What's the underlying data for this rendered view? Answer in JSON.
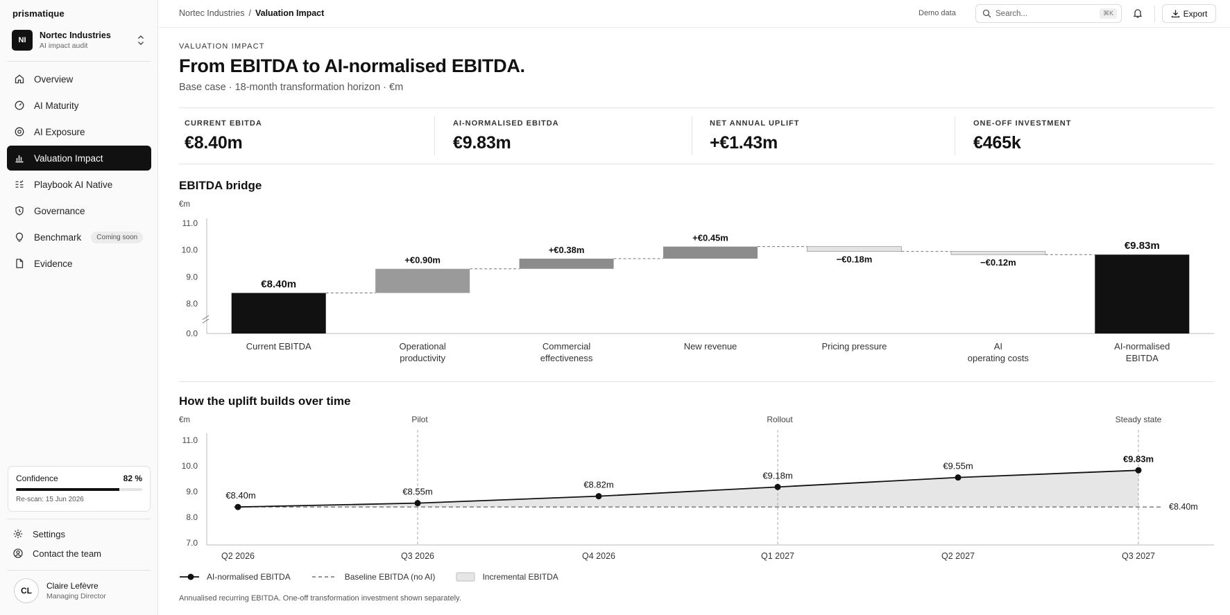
{
  "app": {
    "brand": "prismatique",
    "org": {
      "initials": "NI",
      "name": "Nortec Industries",
      "subtitle": "AI impact audit"
    }
  },
  "sidebar": {
    "items": [
      {
        "label": "Overview",
        "icon": "home-icon"
      },
      {
        "label": "AI Maturity",
        "icon": "gauge-icon"
      },
      {
        "label": "AI Exposure",
        "icon": "target-icon"
      },
      {
        "label": "Valuation Impact",
        "icon": "bar-chart-icon",
        "active": true
      },
      {
        "label": "Playbook AI Native",
        "icon": "list-check-icon"
      },
      {
        "label": "Governance",
        "icon": "shield-icon"
      },
      {
        "label": "Benchmark",
        "icon": "lightbulb-icon",
        "badge": "Coming soon"
      },
      {
        "label": "Evidence",
        "icon": "file-icon"
      }
    ],
    "confidence": {
      "label": "Confidence",
      "value": "82 %",
      "fraction": 0.82,
      "rescan": "Re-scan: 15 Jun 2026"
    },
    "settings_label": "Settings",
    "contact_label": "Contact the team",
    "user": {
      "initials": "CL",
      "name": "Claire Lefèvre",
      "role": "Managing Director"
    }
  },
  "topbar": {
    "breadcrumb_parent": "Nortec Industries",
    "breadcrumb_sep": "/",
    "breadcrumb_current": "Valuation Impact",
    "demo_label": "Demo data",
    "search_placeholder": "Search...",
    "search_shortcut": "⌘K",
    "export_label": "Export"
  },
  "page": {
    "eyebrow": "VALUATION IMPACT",
    "title": "From EBITDA to AI-normalised EBITDA.",
    "subtitle": "Base case · 18-month transformation horizon · €m"
  },
  "kpis": [
    {
      "label": "CURRENT EBITDA",
      "value": "€8.40m"
    },
    {
      "label": "AI-NORMALISED EBITDA",
      "value": "€9.83m"
    },
    {
      "label": "NET ANNUAL UPLIFT",
      "value": "+€1.43m"
    },
    {
      "label": "ONE-OFF INVESTMENT",
      "value": "€465k"
    }
  ],
  "bridge": {
    "title": "EBITDA bridge",
    "unit": "€m"
  },
  "timeline": {
    "title": "How the uplift builds over time",
    "unit": "€m",
    "legend": [
      "AI-normalised EBITDA",
      "Baseline EBITDA (no AI)",
      "Incremental EBITDA"
    ],
    "footnote": "Annualised recurring EBITDA. One-off transformation investment shown separately."
  },
  "colors": {
    "ink": "#111111",
    "bar_up": "#9a9a9a",
    "bar_up_light": "#8c8c8c",
    "bar_down": "#e4e4e4",
    "area": "#e6e6e6",
    "grid": "#d6d6d6"
  },
  "chart_data": [
    {
      "type": "bar",
      "subtype": "waterfall",
      "title": "EBITDA bridge",
      "ylabel": "€m",
      "ylim": [
        0,
        11
      ],
      "axis_break": true,
      "yticks": [
        0.0,
        8.0,
        9.0,
        10.0,
        11.0
      ],
      "ytick_labels": [
        "0.0",
        "8.0",
        "9.0",
        "10.0",
        "11.0"
      ],
      "categories": [
        "Current EBITDA",
        "Operational productivity",
        "Commercial effectiveness",
        "New revenue",
        "Pricing pressure",
        "AI operating costs",
        "AI-normalised EBITDA"
      ],
      "values": [
        8.4,
        0.9,
        0.38,
        0.45,
        -0.18,
        -0.12,
        9.83
      ],
      "kinds": [
        "total",
        "delta",
        "delta",
        "delta",
        "delta",
        "delta",
        "total"
      ],
      "data_labels": [
        "€8.40m",
        "+€0.90m",
        "+€0.38m",
        "+€0.45m",
        "−€0.18m",
        "−€0.12m",
        "€9.83m"
      ]
    },
    {
      "type": "area",
      "title": "How the uplift builds over time",
      "ylabel": "€m",
      "ylim": [
        7.0,
        11.0
      ],
      "yticks": [
        7.0,
        8.0,
        9.0,
        10.0,
        11.0
      ],
      "ytick_labels": [
        "7.0",
        "8.0",
        "9.0",
        "10.0",
        "11.0"
      ],
      "categories": [
        "Q2 2026",
        "Q3 2026",
        "Q4 2026",
        "Q1 2027",
        "Q2 2027",
        "Q3 2027"
      ],
      "series": [
        {
          "name": "AI-normalised EBITDA",
          "values": [
            8.4,
            8.55,
            8.82,
            9.18,
            9.55,
            9.83
          ],
          "labels": [
            "€8.40m",
            "€8.55m",
            "€8.82m",
            "€9.18m",
            "€9.55m",
            "€9.83m"
          ]
        },
        {
          "name": "Baseline EBITDA (no AI)",
          "values": [
            8.4,
            8.4,
            8.4,
            8.4,
            8.4,
            8.4
          ],
          "end_label": "€8.40m"
        }
      ],
      "phases": [
        {
          "label": "Pilot",
          "at": "Q3 2026"
        },
        {
          "label": "Rollout",
          "at": "Q1 2027"
        },
        {
          "label": "Steady state",
          "at": "Q3 2027"
        }
      ],
      "legend_position": "bottom-left"
    }
  ]
}
